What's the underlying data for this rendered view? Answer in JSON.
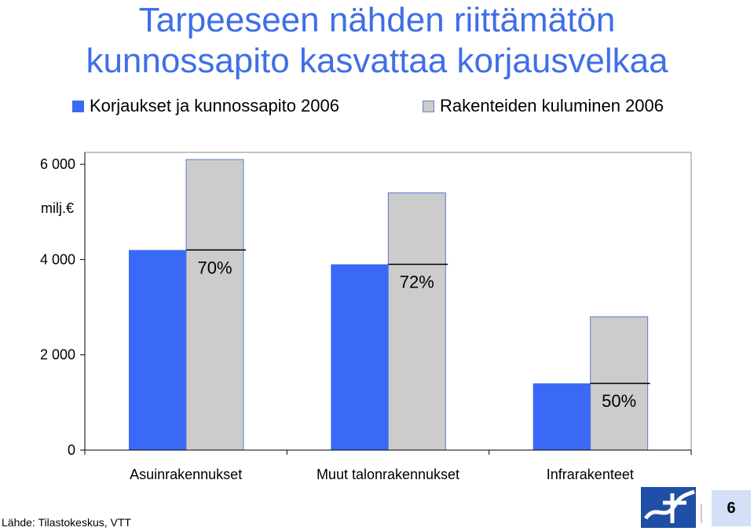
{
  "title_lines": [
    "Tarpeeseen nähden riittämätön",
    "kunnossapito kasvattaa korjausvelkaa"
  ],
  "legend": [
    {
      "label": "Korjaukset ja kunnossapito 2006",
      "color": "#3a69f7"
    },
    {
      "label": "Rakenteiden kuluminen 2006",
      "color": "#cccccc"
    }
  ],
  "chart_data": {
    "type": "bar",
    "categories": [
      "Asuinrakennukset",
      "Muut talonrakennukset",
      "Infrarakenteet"
    ],
    "series": [
      {
        "name": "Korjaukset ja kunnossapito 2006",
        "values": [
          4200,
          3900,
          1400
        ],
        "color": "#3a69f7"
      },
      {
        "name": "Rakenteiden kuluminen 2006",
        "values": [
          6100,
          5400,
          2800
        ],
        "color": "#cccccc"
      }
    ],
    "annotations": [
      "70%",
      "72%",
      "50%"
    ],
    "yticks": [
      0,
      2000,
      4000,
      6000
    ],
    "ytick_labels": [
      "0",
      "2 000",
      "4 000",
      "6 000"
    ],
    "ylabel": "milj.€",
    "ylim": [
      0,
      6250
    ],
    "grid": false,
    "legend_position": "top"
  },
  "source": "Lähde: Tilastokeskus, VTT",
  "page_number": "6"
}
